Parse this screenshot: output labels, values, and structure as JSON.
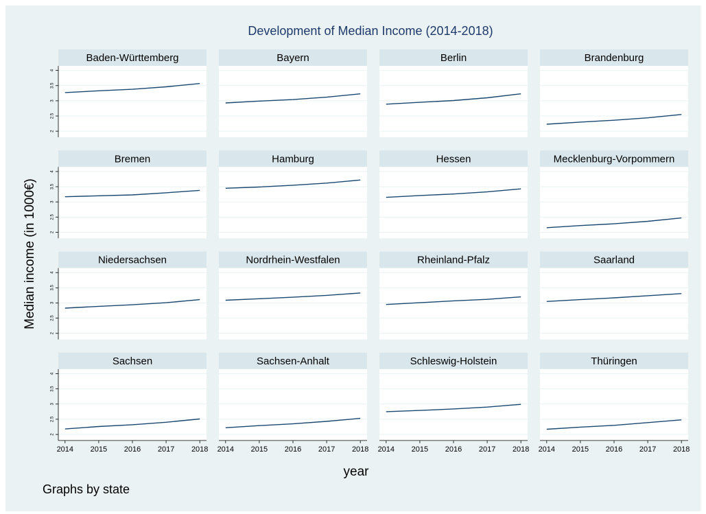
{
  "figure": {
    "title": "Development of Median Income (2014-2018)",
    "y_label": "Median income (in 1000€)",
    "x_label": "year",
    "note": "Graphs by state"
  },
  "chart_data": [
    {
      "type": "line",
      "title": "Baden-Württemberg",
      "x": [
        2014,
        2015,
        2016,
        2017,
        2018
      ],
      "values": [
        3.27,
        3.33,
        3.38,
        3.46,
        3.57
      ],
      "color": "#1a476f",
      "xlim": [
        2013.8,
        2018.2
      ],
      "ylim": [
        1.8,
        4.15
      ],
      "yticks": [
        2,
        2.5,
        3,
        3.5,
        4
      ],
      "grid": true
    },
    {
      "type": "line",
      "title": "Bayern",
      "x": [
        2014,
        2015,
        2016,
        2017,
        2018
      ],
      "values": [
        2.93,
        2.99,
        3.04,
        3.12,
        3.23
      ],
      "color": "#1a476f",
      "xlim": [
        2013.8,
        2018.2
      ],
      "ylim": [
        1.8,
        4.15
      ],
      "yticks": [
        2,
        2.5,
        3,
        3.5,
        4
      ],
      "grid": true
    },
    {
      "type": "line",
      "title": "Berlin",
      "x": [
        2014,
        2015,
        2016,
        2017,
        2018
      ],
      "values": [
        2.89,
        2.95,
        3.01,
        3.1,
        3.23
      ],
      "color": "#1a476f",
      "xlim": [
        2013.8,
        2018.2
      ],
      "ylim": [
        1.8,
        4.15
      ],
      "yticks": [
        2,
        2.5,
        3,
        3.5,
        4
      ],
      "grid": true
    },
    {
      "type": "line",
      "title": "Brandenburg",
      "x": [
        2014,
        2015,
        2016,
        2017,
        2018
      ],
      "values": [
        2.23,
        2.3,
        2.36,
        2.44,
        2.55
      ],
      "color": "#1a476f",
      "xlim": [
        2013.8,
        2018.2
      ],
      "ylim": [
        1.8,
        4.15
      ],
      "yticks": [
        2,
        2.5,
        3,
        3.5,
        4
      ],
      "grid": true
    },
    {
      "type": "line",
      "title": "Bremen",
      "x": [
        2014,
        2015,
        2016,
        2017,
        2018
      ],
      "values": [
        3.17,
        3.2,
        3.23,
        3.3,
        3.38
      ],
      "color": "#1a476f",
      "xlim": [
        2013.8,
        2018.2
      ],
      "ylim": [
        1.8,
        4.15
      ],
      "yticks": [
        2,
        2.5,
        3,
        3.5,
        4
      ],
      "grid": true
    },
    {
      "type": "line",
      "title": "Hamburg",
      "x": [
        2014,
        2015,
        2016,
        2017,
        2018
      ],
      "values": [
        3.45,
        3.49,
        3.55,
        3.62,
        3.72
      ],
      "color": "#1a476f",
      "xlim": [
        2013.8,
        2018.2
      ],
      "ylim": [
        1.8,
        4.15
      ],
      "yticks": [
        2,
        2.5,
        3,
        3.5,
        4
      ],
      "grid": true
    },
    {
      "type": "line",
      "title": "Hessen",
      "x": [
        2014,
        2015,
        2016,
        2017,
        2018
      ],
      "values": [
        3.15,
        3.21,
        3.26,
        3.33,
        3.43
      ],
      "color": "#1a476f",
      "xlim": [
        2013.8,
        2018.2
      ],
      "ylim": [
        1.8,
        4.15
      ],
      "yticks": [
        2,
        2.5,
        3,
        3.5,
        4
      ],
      "grid": true
    },
    {
      "type": "line",
      "title": "Mecklenburg-Vorpommern",
      "x": [
        2014,
        2015,
        2016,
        2017,
        2018
      ],
      "values": [
        2.15,
        2.22,
        2.28,
        2.36,
        2.47
      ],
      "color": "#1a476f",
      "xlim": [
        2013.8,
        2018.2
      ],
      "ylim": [
        1.8,
        4.15
      ],
      "yticks": [
        2,
        2.5,
        3,
        3.5,
        4
      ],
      "grid": true
    },
    {
      "type": "line",
      "title": "Niedersachsen",
      "x": [
        2014,
        2015,
        2016,
        2017,
        2018
      ],
      "values": [
        2.83,
        2.89,
        2.94,
        3.01,
        3.11
      ],
      "color": "#1a476f",
      "xlim": [
        2013.8,
        2018.2
      ],
      "ylim": [
        1.8,
        4.15
      ],
      "yticks": [
        2,
        2.5,
        3,
        3.5,
        4
      ],
      "grid": true
    },
    {
      "type": "line",
      "title": "Nordrhein-Westfalen",
      "x": [
        2014,
        2015,
        2016,
        2017,
        2018
      ],
      "values": [
        3.09,
        3.14,
        3.19,
        3.25,
        3.33
      ],
      "color": "#1a476f",
      "xlim": [
        2013.8,
        2018.2
      ],
      "ylim": [
        1.8,
        4.15
      ],
      "yticks": [
        2,
        2.5,
        3,
        3.5,
        4
      ],
      "grid": true
    },
    {
      "type": "line",
      "title": "Rheinland-Pfalz",
      "x": [
        2014,
        2015,
        2016,
        2017,
        2018
      ],
      "values": [
        2.95,
        3.01,
        3.07,
        3.12,
        3.2
      ],
      "color": "#1a476f",
      "xlim": [
        2013.8,
        2018.2
      ],
      "ylim": [
        1.8,
        4.15
      ],
      "yticks": [
        2,
        2.5,
        3,
        3.5,
        4
      ],
      "grid": true
    },
    {
      "type": "line",
      "title": "Saarland",
      "x": [
        2014,
        2015,
        2016,
        2017,
        2018
      ],
      "values": [
        3.05,
        3.11,
        3.17,
        3.24,
        3.31
      ],
      "color": "#1a476f",
      "xlim": [
        2013.8,
        2018.2
      ],
      "ylim": [
        1.8,
        4.15
      ],
      "yticks": [
        2,
        2.5,
        3,
        3.5,
        4
      ],
      "grid": true
    },
    {
      "type": "line",
      "title": "Sachsen",
      "x": [
        2014,
        2015,
        2016,
        2017,
        2018
      ],
      "values": [
        2.18,
        2.26,
        2.32,
        2.4,
        2.51
      ],
      "color": "#1a476f",
      "xlim": [
        2013.8,
        2018.2
      ],
      "xticks": [
        2014,
        2015,
        2016,
        2017,
        2018
      ],
      "ylim": [
        1.8,
        4.15
      ],
      "yticks": [
        2,
        2.5,
        3,
        3.5,
        4
      ],
      "grid": true
    },
    {
      "type": "line",
      "title": "Sachsen-Anhalt",
      "x": [
        2014,
        2015,
        2016,
        2017,
        2018
      ],
      "values": [
        2.22,
        2.29,
        2.35,
        2.43,
        2.53
      ],
      "color": "#1a476f",
      "xlim": [
        2013.8,
        2018.2
      ],
      "xticks": [
        2014,
        2015,
        2016,
        2017,
        2018
      ],
      "ylim": [
        1.8,
        4.15
      ],
      "yticks": [
        2,
        2.5,
        3,
        3.5,
        4
      ],
      "grid": true
    },
    {
      "type": "line",
      "title": "Schleswig-Holstein",
      "x": [
        2014,
        2015,
        2016,
        2017,
        2018
      ],
      "values": [
        2.75,
        2.79,
        2.84,
        2.9,
        2.99
      ],
      "color": "#1a476f",
      "xlim": [
        2013.8,
        2018.2
      ],
      "xticks": [
        2014,
        2015,
        2016,
        2017,
        2018
      ],
      "ylim": [
        1.8,
        4.15
      ],
      "yticks": [
        2,
        2.5,
        3,
        3.5,
        4
      ],
      "grid": true
    },
    {
      "type": "line",
      "title": "Thüringen",
      "x": [
        2014,
        2015,
        2016,
        2017,
        2018
      ],
      "values": [
        2.17,
        2.24,
        2.3,
        2.39,
        2.48
      ],
      "color": "#1a476f",
      "xlim": [
        2013.8,
        2018.2
      ],
      "xticks": [
        2014,
        2015,
        2016,
        2017,
        2018
      ],
      "ylim": [
        1.8,
        4.15
      ],
      "yticks": [
        2,
        2.5,
        3,
        3.5,
        4
      ],
      "grid": true
    }
  ]
}
